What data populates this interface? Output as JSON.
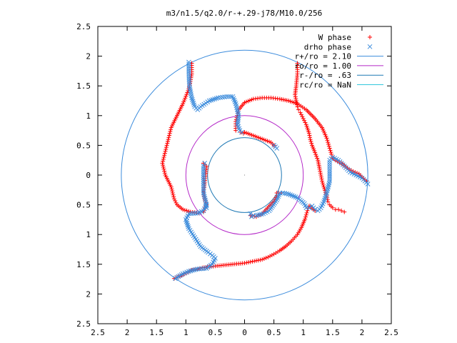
{
  "chart_data": {
    "type": "scatter",
    "title": "m3/n1.5/q2.0/r-+.29-j78/M10.0/256",
    "xlim": [
      -2.5,
      2.5
    ],
    "ylim": [
      -2.5,
      2.5
    ],
    "xticks": [
      -2.5,
      -2,
      -1.5,
      -1,
      -0.5,
      0,
      0.5,
      1,
      1.5,
      2,
      2.5
    ],
    "yticks": [
      -2.5,
      -2,
      -1.5,
      -1,
      -0.5,
      0,
      0.5,
      1,
      1.5,
      2,
      2.5
    ],
    "xtick_labels": [
      "2.5",
      "2",
      "1.5",
      "1",
      "0.5",
      "0",
      "0.5",
      "1",
      "1.5",
      "2",
      "2.5"
    ],
    "ytick_labels": [
      "2.5",
      "2",
      "1.5",
      "1",
      "0.5",
      "0",
      "0.5",
      "1",
      "1.5",
      "2",
      "2.5"
    ],
    "legend_position": "top-right",
    "series": [
      {
        "name": "W phase",
        "marker": "plus",
        "color": "#ff0000",
        "arms": [
          [
            [
              -1.2,
              -1.74
            ],
            [
              -1.1,
              -1.7
            ],
            [
              -1.0,
              -1.65
            ],
            [
              -0.9,
              -1.6
            ],
            [
              -0.8,
              -1.58
            ],
            [
              -0.72,
              -1.56
            ],
            [
              -0.6,
              -1.54
            ],
            [
              -0.5,
              -1.53
            ],
            [
              -0.4,
              -1.52
            ],
            [
              -0.3,
              -1.51
            ],
            [
              -0.2,
              -1.5
            ],
            [
              -0.1,
              -1.49
            ],
            [
              0.0,
              -1.48
            ],
            [
              0.1,
              -1.46
            ],
            [
              0.2,
              -1.44
            ],
            [
              0.3,
              -1.42
            ],
            [
              0.4,
              -1.38
            ],
            [
              0.5,
              -1.33
            ],
            [
              0.6,
              -1.27
            ],
            [
              0.7,
              -1.2
            ],
            [
              0.8,
              -1.11
            ],
            [
              0.9,
              -1.0
            ],
            [
              0.97,
              -0.88
            ],
            [
              1.03,
              -0.74
            ],
            [
              1.07,
              -0.6
            ],
            [
              1.1,
              -0.52
            ],
            [
              1.15,
              -0.56
            ],
            [
              1.2,
              -0.6
            ]
          ],
          [
            [
              -0.15,
              0.75
            ],
            [
              -0.15,
              0.9
            ],
            [
              -0.1,
              1.1
            ],
            [
              0.0,
              1.22
            ],
            [
              0.15,
              1.28
            ],
            [
              0.3,
              1.3
            ],
            [
              0.45,
              1.3
            ],
            [
              0.6,
              1.28
            ],
            [
              0.75,
              1.25
            ],
            [
              0.9,
              1.2
            ],
            [
              1.05,
              1.1
            ],
            [
              1.2,
              0.95
            ],
            [
              1.32,
              0.8
            ],
            [
              1.4,
              0.62
            ],
            [
              1.45,
              0.45
            ],
            [
              1.48,
              0.35
            ],
            [
              1.5,
              0.3
            ],
            [
              1.55,
              0.25
            ],
            [
              1.65,
              0.2
            ],
            [
              1.75,
              0.12
            ],
            [
              1.85,
              0.06
            ],
            [
              1.95,
              0.02
            ],
            [
              2.05,
              -0.08
            ],
            [
              2.08,
              -0.1
            ]
          ],
          [
            [
              0.9,
              1.88
            ],
            [
              0.9,
              1.7
            ],
            [
              0.88,
              1.5
            ],
            [
              0.86,
              1.35
            ],
            [
              0.9,
              1.15
            ],
            [
              0.92,
              1.1
            ],
            [
              0.95,
              1.05
            ],
            [
              1.0,
              0.95
            ],
            [
              1.05,
              0.85
            ],
            [
              1.1,
              0.7
            ],
            [
              1.12,
              0.6
            ],
            [
              1.15,
              0.5
            ],
            [
              1.2,
              0.38
            ],
            [
              1.25,
              0.25
            ],
            [
              1.28,
              0.1
            ],
            [
              1.3,
              0.0
            ],
            [
              1.32,
              -0.1
            ],
            [
              1.35,
              -0.2
            ],
            [
              1.4,
              -0.35
            ],
            [
              1.42,
              -0.45
            ],
            [
              1.45,
              -0.5
            ],
            [
              1.5,
              -0.55
            ],
            [
              1.55,
              -0.58
            ],
            [
              1.6,
              -0.58
            ],
            [
              1.65,
              -0.6
            ],
            [
              1.7,
              -0.62
            ]
          ],
          [
            [
              -0.78,
              -0.64
            ],
            [
              -0.92,
              -0.62
            ],
            [
              -1.05,
              -0.58
            ],
            [
              -1.15,
              -0.5
            ],
            [
              -1.2,
              -0.4
            ],
            [
              -1.25,
              -0.2
            ],
            [
              -1.35,
              0.0
            ],
            [
              -1.4,
              0.2
            ],
            [
              -1.35,
              0.4
            ],
            [
              -1.3,
              0.6
            ],
            [
              -1.25,
              0.8
            ],
            [
              -1.15,
              1.0
            ],
            [
              -1.05,
              1.2
            ],
            [
              -0.95,
              1.45
            ],
            [
              -0.9,
              1.7
            ],
            [
              -0.9,
              1.88
            ]
          ],
          [
            [
              -0.7,
              -0.62
            ],
            [
              -0.65,
              -0.5
            ],
            [
              -0.7,
              -0.3
            ],
            [
              -0.65,
              0.15
            ],
            [
              -0.7,
              0.2
            ],
            [
              -0.06,
              0.72
            ],
            [
              -0.02,
              0.7
            ],
            [
              0.0,
              0.72
            ],
            [
              0.45,
              0.55
            ],
            [
              0.5,
              0.5
            ],
            [
              0.55,
              -0.3
            ],
            [
              0.62,
              -0.3
            ],
            [
              0.1,
              -0.68
            ],
            [
              0.2,
              -0.7
            ],
            [
              0.3,
              -0.65
            ],
            [
              0.5,
              -0.44
            ],
            [
              0.55,
              -0.35
            ]
          ]
        ]
      },
      {
        "name": "drho phase",
        "marker": "cross",
        "color": "#3c8cdc",
        "arms": [
          [
            [
              -1.18,
              -1.74
            ],
            [
              -1.05,
              -1.66
            ],
            [
              -0.95,
              -1.62
            ],
            [
              -0.8,
              -1.58
            ],
            [
              -0.65,
              -1.57
            ],
            [
              -0.55,
              -1.5
            ],
            [
              -0.5,
              -1.4
            ],
            [
              -0.55,
              -1.35
            ],
            [
              -0.62,
              -1.3
            ],
            [
              -0.75,
              -1.2
            ],
            [
              -0.85,
              -1.05
            ],
            [
              -0.95,
              -0.9
            ],
            [
              -1.0,
              -0.75
            ],
            [
              -0.95,
              -0.65
            ],
            [
              -0.8,
              -0.64
            ],
            [
              -0.7,
              -0.6
            ],
            [
              -0.65,
              -0.5
            ]
          ],
          [
            [
              -0.95,
              1.9
            ],
            [
              -0.95,
              1.7
            ],
            [
              -0.94,
              1.5
            ],
            [
              -0.9,
              1.3
            ],
            [
              -0.85,
              1.15
            ],
            [
              -0.8,
              1.1
            ],
            [
              -0.75,
              1.15
            ],
            [
              -0.6,
              1.25
            ],
            [
              -0.45,
              1.3
            ],
            [
              -0.3,
              1.32
            ],
            [
              -0.2,
              1.32
            ],
            [
              -0.15,
              1.2
            ],
            [
              -0.1,
              1.0
            ],
            [
              -0.12,
              0.85
            ],
            [
              -0.08,
              0.75
            ],
            [
              -0.05,
              0.72
            ]
          ],
          [
            [
              0.5,
              0.5
            ],
            [
              0.55,
              0.45
            ],
            [
              0.65,
              -0.3
            ],
            [
              0.75,
              -0.32
            ],
            [
              0.9,
              -0.38
            ],
            [
              1.02,
              -0.48
            ],
            [
              1.05,
              -0.55
            ],
            [
              1.1,
              -0.55
            ],
            [
              1.15,
              -0.52
            ],
            [
              1.2,
              -0.58
            ],
            [
              1.25,
              -0.6
            ],
            [
              1.3,
              -0.55
            ],
            [
              1.35,
              -0.45
            ],
            [
              1.4,
              -0.3
            ],
            [
              1.45,
              -0.1
            ],
            [
              1.45,
              0.1
            ],
            [
              1.45,
              0.25
            ],
            [
              1.5,
              0.3
            ],
            [
              1.6,
              0.25
            ],
            [
              1.7,
              0.15
            ],
            [
              1.8,
              0.05
            ],
            [
              1.9,
              0.0
            ],
            [
              2.0,
              -0.05
            ],
            [
              2.1,
              -0.15
            ]
          ],
          [
            [
              -0.68,
              0.2
            ],
            [
              -0.7,
              0.15
            ],
            [
              -0.7,
              -0.3
            ],
            [
              -0.66,
              -0.45
            ],
            [
              -0.65,
              -0.55
            ],
            [
              0.1,
              -0.65
            ],
            [
              0.12,
              -0.7
            ],
            [
              0.15,
              -0.68
            ],
            [
              0.2,
              -0.68
            ],
            [
              0.32,
              -0.65
            ],
            [
              0.42,
              -0.6
            ],
            [
              0.55,
              -0.42
            ],
            [
              0.6,
              -0.3
            ]
          ]
        ]
      },
      {
        "name": "r+/ro = 2.10",
        "type": "circle",
        "radius": 2.1,
        "color": "#3c8cdc"
      },
      {
        "name": "ro/ro = 1.00",
        "type": "circle",
        "radius": 1.0,
        "color": "#b428c8"
      },
      {
        "name": "r-/ro = .63",
        "type": "circle",
        "radius": 0.63,
        "color": "#1e78b4"
      },
      {
        "name": "rc/ro = NaN",
        "type": "circle",
        "radius": null,
        "color": "#32c8dc"
      }
    ]
  }
}
